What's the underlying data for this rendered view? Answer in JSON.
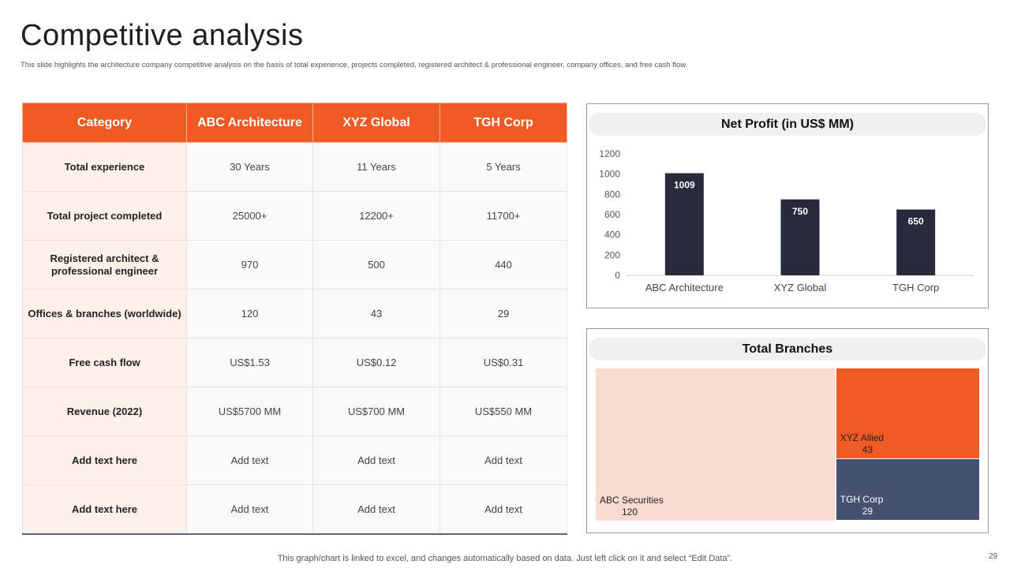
{
  "title": "Competitive analysis",
  "subtitle": "This slide highlights the architecture company competitive analysis on the basis of total experience, projects completed, registered architect & professional engineer, company offices, and free cash flow.",
  "table": {
    "headers": [
      "Category",
      "ABC Architecture",
      "XYZ Global",
      "TGH Corp"
    ],
    "rows": [
      [
        "Total experience",
        "30 Years",
        "11 Years",
        "5 Years"
      ],
      [
        "Total project completed",
        "25000+",
        "12200+",
        "11700+"
      ],
      [
        "Registered architect & professional engineer",
        "970",
        "500",
        "440"
      ],
      [
        "Offices & branches (worldwide)",
        "120",
        "43",
        "29"
      ],
      [
        "Free cash flow",
        "US$1.53",
        "US$0.12",
        "US$0.31"
      ],
      [
        "Revenue (2022)",
        "US$5700 MM",
        "US$700 MM",
        "US$550 MM"
      ],
      [
        "Add text here",
        "Add text",
        "Add text",
        "Add text"
      ],
      [
        "Add text here",
        "Add text",
        "Add text",
        "Add text"
      ]
    ]
  },
  "chart_data": [
    {
      "type": "bar",
      "title": "Net Profit (in US$ MM)",
      "categories": [
        "ABC Architecture",
        "XYZ Global",
        "TGH Corp"
      ],
      "values": [
        1009,
        750,
        650
      ],
      "data_labels": [
        "1009",
        "750",
        "650"
      ],
      "ylim": [
        0,
        1200
      ],
      "yticks": [
        0,
        200,
        400,
        600,
        800,
        1000,
        1200
      ],
      "xlabel": "",
      "ylabel": "",
      "grid": false,
      "colors": {
        "bar": "#262a3a"
      }
    },
    {
      "type": "treemap",
      "title": "Total Branches",
      "items": [
        {
          "name": "ABC Securities",
          "value": 120,
          "value_label": "120",
          "color": "#fadbd0"
        },
        {
          "name": "XYZ Allied",
          "value": 43,
          "value_label": "43",
          "color": "#f05a24"
        },
        {
          "name": "TGH Corp",
          "value": 29,
          "value_label": "29",
          "color": "#465172"
        }
      ]
    }
  ],
  "footer": "This graph/chart is linked to excel,  and changes automatically based on data. Just left click on it and select “Edit Data”.",
  "page_number": "29",
  "colors": {
    "accent": "#f05a24",
    "header_text": "#ffffff",
    "bar": "#262a3a"
  }
}
